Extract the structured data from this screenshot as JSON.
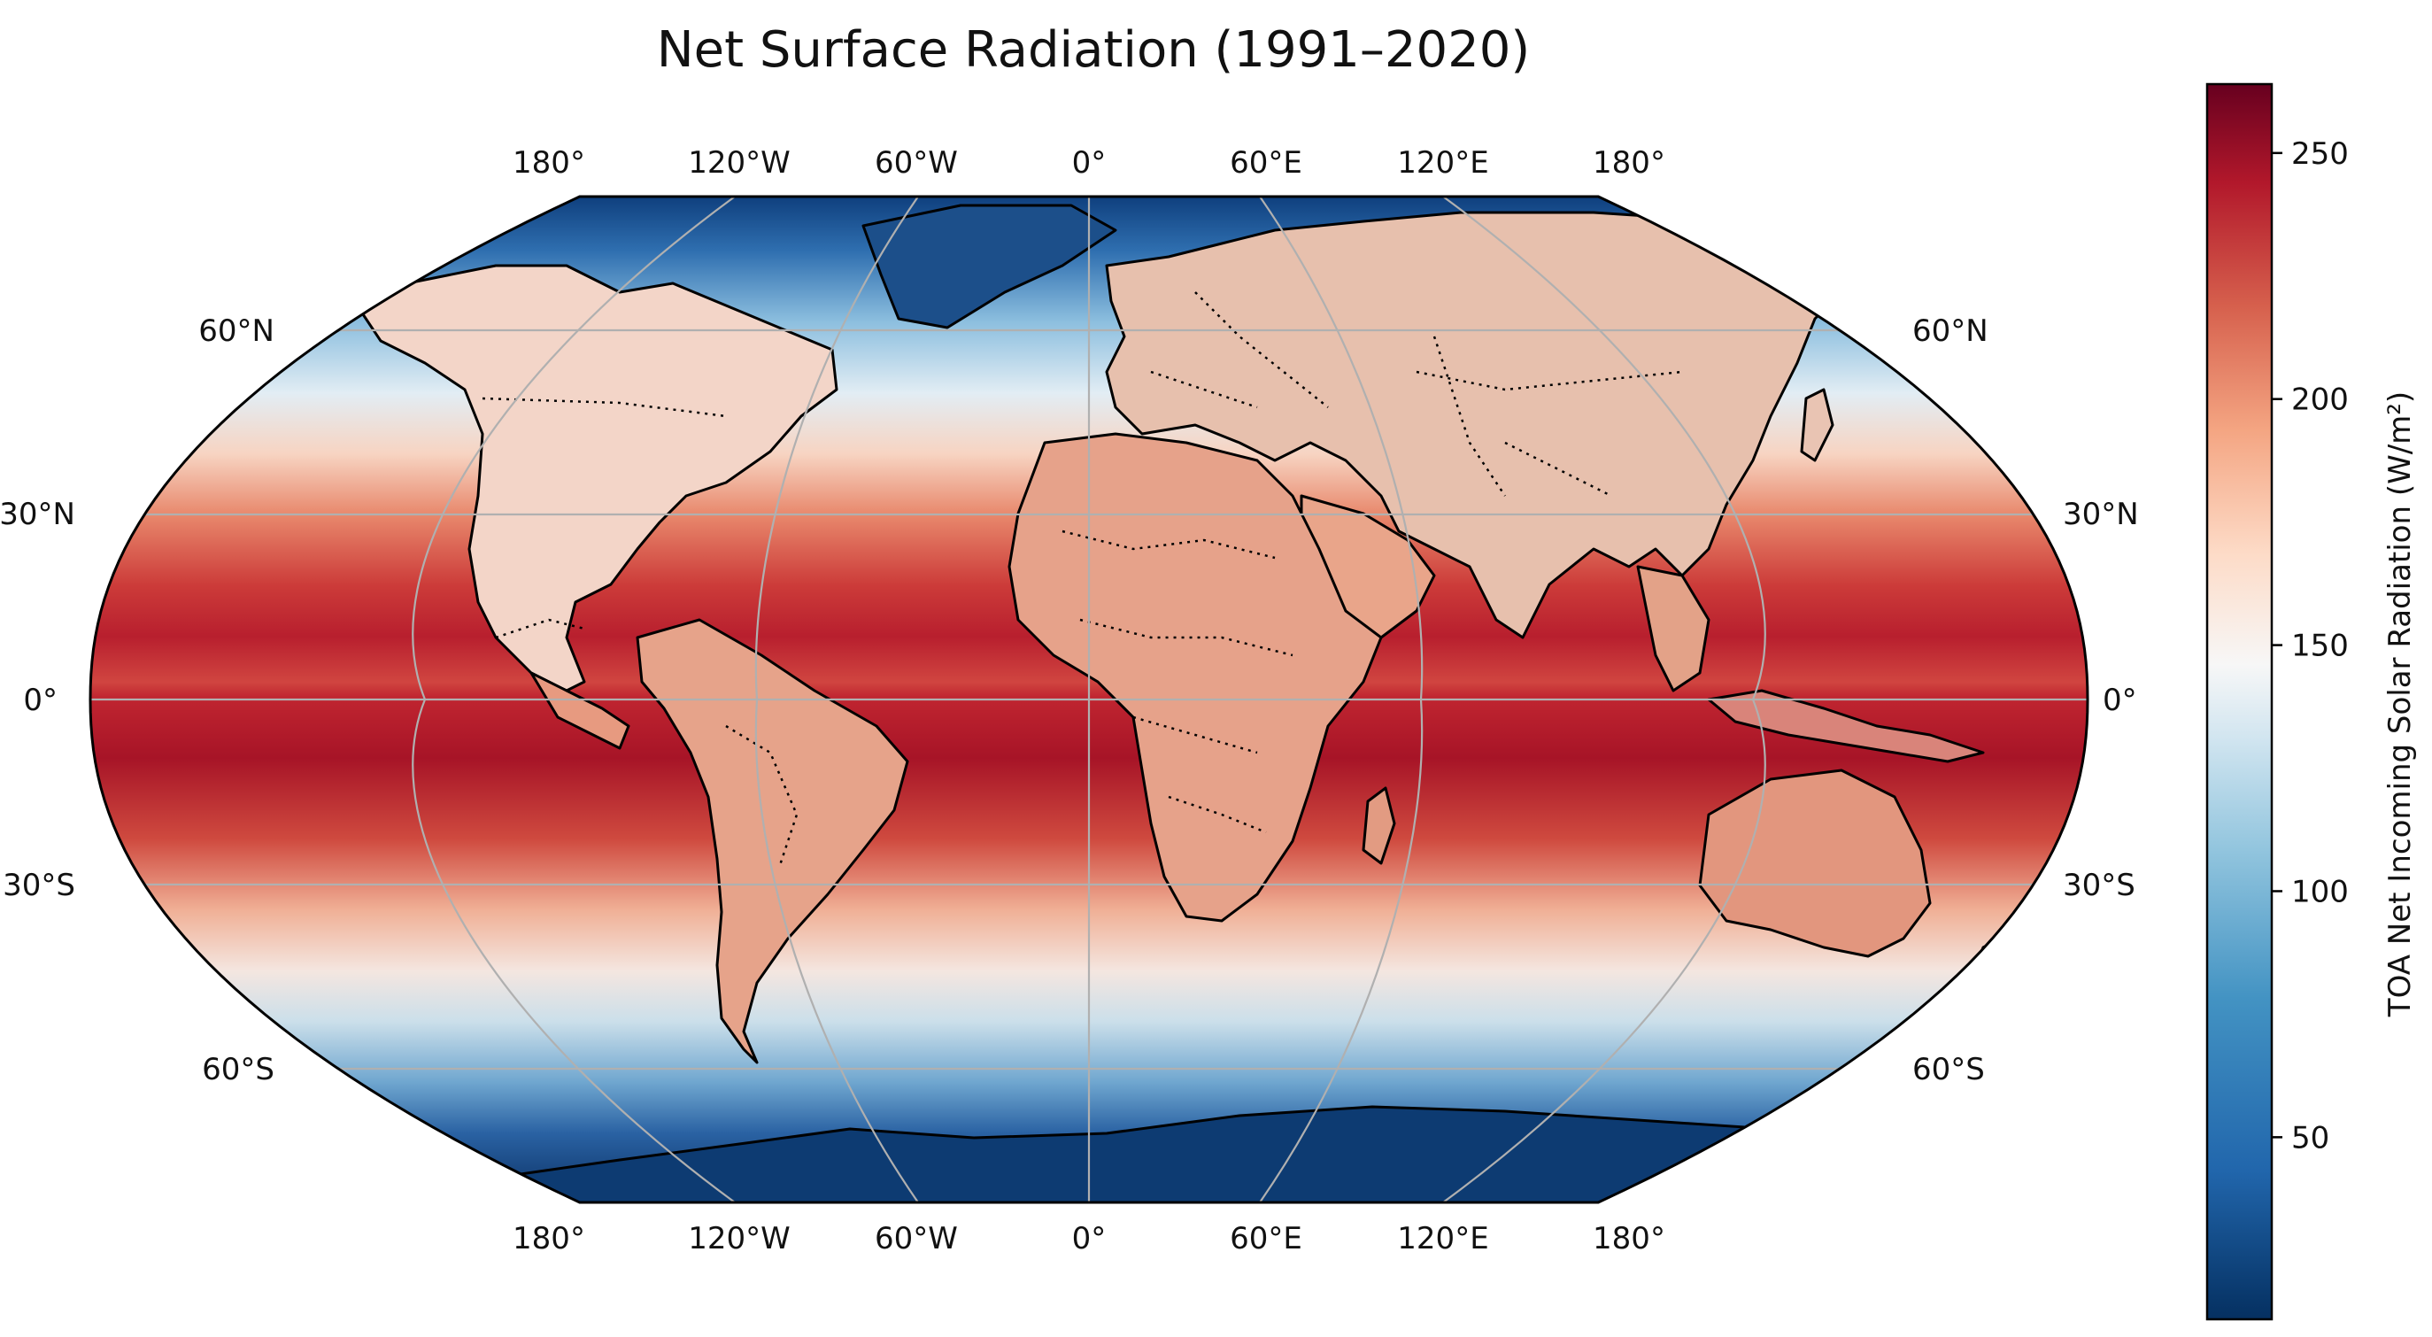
{
  "title": "Net Surface Radiation (1991–2020)",
  "map": {
    "projection": "Robinson",
    "grid_lines": true,
    "coastlines": true,
    "country_borders": "dotted",
    "lon_labels": [
      "180°",
      "120°W",
      "60°W",
      "0°",
      "60°E",
      "120°E",
      "180°"
    ],
    "lat_labels_left": [
      "60°N",
      "30°N",
      "0°",
      "30°S",
      "60°S"
    ],
    "lat_labels_right": [
      "60°N",
      "30°N",
      "0°",
      "30°S",
      "60°S"
    ]
  },
  "colorbar": {
    "label": "TOA Net Incoming Solar Radiation (W/m²)",
    "colormap": "RdBu_r",
    "range": [
      13,
      264
    ],
    "ticks": [
      "50",
      "100",
      "150",
      "200",
      "250"
    ],
    "tick_values": [
      50,
      100,
      150,
      200,
      250
    ]
  },
  "colors": {
    "deep_blue": "#053061",
    "blue": "#2166ac",
    "light_blue": "#92c5de",
    "white": "#f7f7f7",
    "light_red": "#f4a582",
    "red": "#d6604d",
    "deep_red": "#b2182b",
    "darkest_red": "#67001f"
  }
}
